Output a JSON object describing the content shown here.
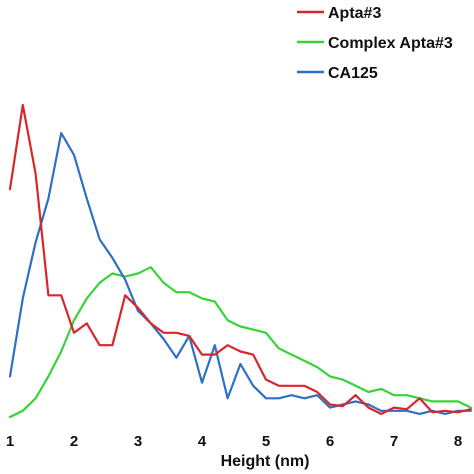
{
  "chart_data": {
    "type": "line",
    "xlabel": "Height (nm)",
    "ylabel": "",
    "title": "",
    "xlim": [
      1,
      8.25
    ],
    "ylim": [
      0,
      1
    ],
    "x_ticks": [
      "1",
      "2",
      "3",
      "4",
      "5",
      "6",
      "7",
      "8"
    ],
    "grid": false,
    "legend_position": "top-right",
    "series": [
      {
        "name": "Apta#3",
        "color": "#d9262b",
        "x": [
          1.0,
          1.2,
          1.4,
          1.6,
          1.8,
          2.0,
          2.2,
          2.4,
          2.6,
          2.8,
          3.0,
          3.2,
          3.4,
          3.6,
          3.8,
          4.0,
          4.2,
          4.4,
          4.6,
          4.8,
          5.0,
          5.2,
          5.4,
          5.6,
          5.8,
          6.0,
          6.2,
          6.4,
          6.6,
          6.8,
          7.0,
          7.2,
          7.4,
          7.6,
          7.8,
          8.0,
          8.2
        ],
        "values": [
          0.73,
          1.0,
          0.78,
          0.39,
          0.39,
          0.27,
          0.3,
          0.23,
          0.23,
          0.39,
          0.35,
          0.3,
          0.27,
          0.27,
          0.26,
          0.2,
          0.2,
          0.23,
          0.21,
          0.2,
          0.12,
          0.1,
          0.1,
          0.1,
          0.08,
          0.04,
          0.035,
          0.07,
          0.03,
          0.01,
          0.03,
          0.025,
          0.06,
          0.015,
          0.02,
          0.015,
          0.025
        ]
      },
      {
        "name": "Complex Apta#3",
        "color": "#39d23a",
        "x": [
          1.0,
          1.2,
          1.4,
          1.6,
          1.8,
          2.0,
          2.2,
          2.4,
          2.6,
          2.8,
          3.0,
          3.2,
          3.4,
          3.6,
          3.8,
          4.0,
          4.2,
          4.4,
          4.6,
          4.8,
          5.0,
          5.2,
          5.4,
          5.6,
          5.8,
          6.0,
          6.2,
          6.4,
          6.6,
          6.8,
          7.0,
          7.2,
          7.4,
          7.6,
          7.8,
          8.0,
          8.2
        ],
        "values": [
          0.0,
          0.02,
          0.06,
          0.13,
          0.21,
          0.31,
          0.38,
          0.43,
          0.46,
          0.45,
          0.46,
          0.48,
          0.43,
          0.4,
          0.4,
          0.38,
          0.37,
          0.31,
          0.29,
          0.28,
          0.27,
          0.22,
          0.2,
          0.18,
          0.16,
          0.13,
          0.12,
          0.1,
          0.08,
          0.09,
          0.07,
          0.07,
          0.06,
          0.05,
          0.05,
          0.05,
          0.03
        ]
      },
      {
        "name": "CA125",
        "color": "#2f6fc5",
        "x": [
          1.0,
          1.2,
          1.4,
          1.6,
          1.8,
          2.0,
          2.2,
          2.4,
          2.6,
          2.8,
          3.0,
          3.2,
          3.4,
          3.6,
          3.8,
          4.0,
          4.2,
          4.4,
          4.6,
          4.8,
          5.0,
          5.2,
          5.4,
          5.6,
          5.8,
          6.0,
          6.2,
          6.4,
          6.6,
          6.8,
          7.0,
          7.2,
          7.4,
          7.6,
          7.8,
          8.0,
          8.2
        ],
        "values": [
          0.13,
          0.38,
          0.56,
          0.7,
          0.91,
          0.84,
          0.7,
          0.57,
          0.51,
          0.44,
          0.34,
          0.3,
          0.25,
          0.19,
          0.26,
          0.11,
          0.23,
          0.06,
          0.17,
          0.1,
          0.06,
          0.06,
          0.07,
          0.06,
          0.07,
          0.03,
          0.04,
          0.05,
          0.04,
          0.02,
          0.02,
          0.02,
          0.01,
          0.02,
          0.01,
          0.02,
          0.02
        ]
      }
    ]
  }
}
